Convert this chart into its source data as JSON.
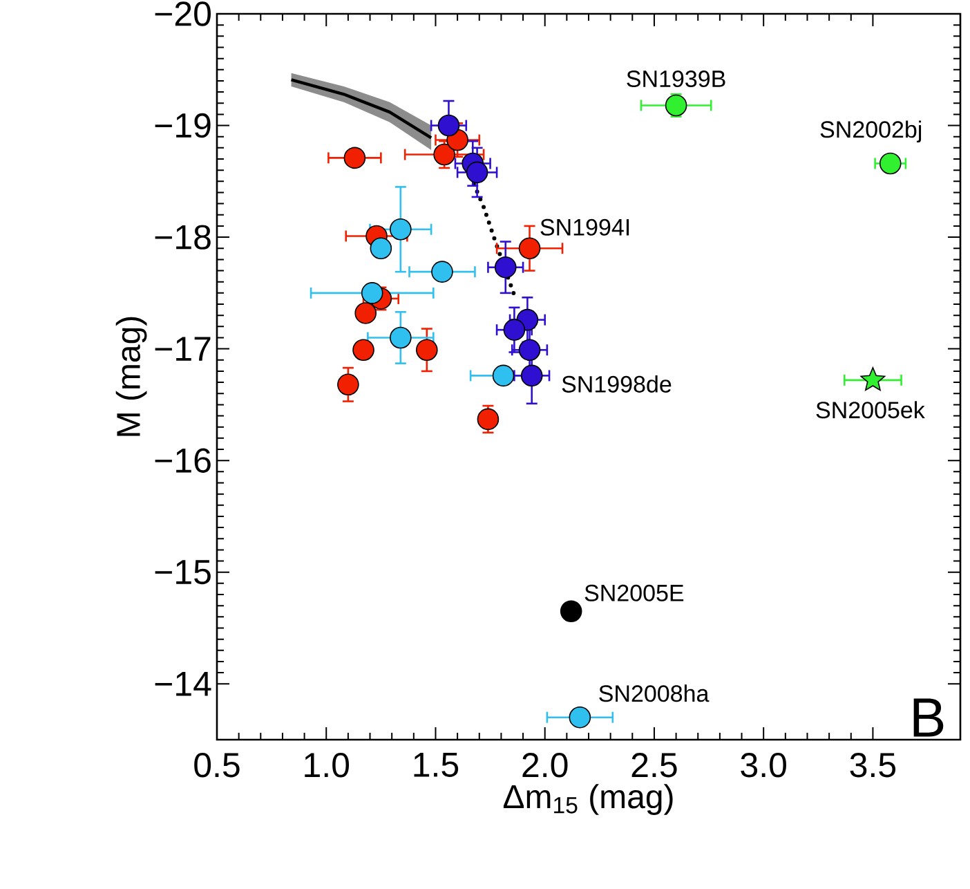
{
  "chart_data": {
    "type": "scatter",
    "xlabel": "Δm$_{15}$ (mag)",
    "ylabel": "M (mag)",
    "xlim": [
      0.5,
      3.9
    ],
    "ylim": [
      -13.5,
      -20
    ],
    "xticks": [
      0.5,
      {
        "value": 1,
        "label": "1.0"
      },
      1.5,
      {
        "value": 2,
        "label": "2.0"
      },
      2.5,
      {
        "value": 3,
        "label": "3.0"
      },
      3.5
    ],
    "yticks": [
      {
        "value": -20,
        "label": "−20"
      },
      {
        "value": -19,
        "label": "−19"
      },
      {
        "value": -18,
        "label": "−18"
      },
      {
        "value": -17,
        "label": "−17"
      },
      {
        "value": -16,
        "label": "−16"
      },
      {
        "value": -15,
        "label": "−15"
      },
      {
        "value": -14,
        "label": "−14"
      }
    ],
    "legend": false,
    "series": [
      {
        "type": "line",
        "color": "#000000",
        "line_style": "solid",
        "marker": "none",
        "x": [
          0.84,
          1.08,
          1.29,
          1.48
        ],
        "values": [
          -19.41,
          -19.28,
          -19.12,
          -18.89
        ],
        "lower": [
          -19.35,
          -19.21,
          -19.03,
          -18.78
        ],
        "upper": [
          -19.47,
          -19.35,
          -19.21,
          -19.0
        ]
      },
      {
        "type": "line",
        "color": "#000000",
        "line_style": "dotted",
        "marker": "none",
        "x": [
          1.63,
          1.72,
          1.77,
          1.86
        ],
        "values": [
          -18.68,
          -18.27,
          -17.98,
          -17.48
        ]
      },
      {
        "color": "#f02000",
        "marker": "circle",
        "x": [
          1.13,
          1.54,
          1.6,
          1.93,
          1.23,
          1.25,
          1.18,
          1.17,
          1.46,
          1.1,
          1.74
        ],
        "values": [
          -18.71,
          -18.74,
          -18.87,
          -17.9,
          -18.01,
          -17.45,
          -17.32,
          -16.99,
          -16.99,
          -16.68,
          -16.37
        ],
        "xerrors": [
          0.12,
          0.18,
          0.1,
          0.15,
          0.14,
          0.08,
          null,
          null,
          null,
          null,
          null
        ],
        "errors": [
          null,
          0.12,
          0.15,
          0.2,
          null,
          0.1,
          null,
          null,
          0.19,
          0.15,
          0.12
        ]
      },
      {
        "color": "#30c0f0",
        "marker": "circle",
        "x": [
          1.34,
          1.25,
          1.53,
          1.21,
          1.34,
          1.81,
          2.16
        ],
        "values": [
          -18.07,
          -17.9,
          -17.69,
          -17.5,
          -17.1,
          -16.76,
          -13.7
        ],
        "xerrors": [
          0.14,
          null,
          0.15,
          0.28,
          0.15,
          0.15,
          0.15
        ],
        "errors": [
          0.38,
          null,
          null,
          null,
          0.23,
          null,
          null
        ]
      },
      {
        "color": "#3010d0",
        "marker": "circle",
        "x": [
          1.56,
          1.67,
          1.69,
          1.82,
          1.92,
          1.86,
          1.93,
          1.94
        ],
        "values": [
          -19.0,
          -18.66,
          -18.58,
          -17.73,
          -17.26,
          -17.17,
          -16.99,
          -16.76
        ],
        "xerrors": [
          0.08,
          0.08,
          0.09,
          0.08,
          0.08,
          0.08,
          0.08,
          0.08
        ],
        "errors": [
          0.22,
          0.2,
          0.22,
          0.23,
          0.2,
          0.2,
          0.2,
          0.25
        ]
      },
      {
        "color": "#30f030",
        "marker": "circle",
        "x": [
          2.6,
          3.58
        ],
        "values": [
          -19.18,
          -18.66
        ],
        "xerrors": [
          0.16,
          0.07
        ],
        "errors": [
          0.1,
          null
        ]
      },
      {
        "color": "#30f030",
        "marker": "star",
        "x": [
          3.5
        ],
        "values": [
          -16.72
        ],
        "xerrors": [
          0.13
        ]
      },
      {
        "color": "#000000",
        "marker": "circle",
        "x": [
          2.12
        ],
        "values": [
          -14.65
        ]
      }
    ],
    "annotations": [
      {
        "text": "SN1939B",
        "x": 2.6,
        "y": -19.18
      },
      {
        "text": "SN2002bj",
        "x": 3.58,
        "y": -18.66
      },
      {
        "text": "SN1994I",
        "x": 1.93,
        "y": -17.9
      },
      {
        "text": "SN1998de",
        "x": 1.94,
        "y": -16.76
      },
      {
        "text": "SN2005ek",
        "x": 3.5,
        "y": -16.72
      },
      {
        "text": "SN2005E",
        "x": 2.12,
        "y": -14.65
      },
      {
        "text": "SN2008ha",
        "x": 2.16,
        "y": -13.7
      },
      "B"
    ]
  }
}
